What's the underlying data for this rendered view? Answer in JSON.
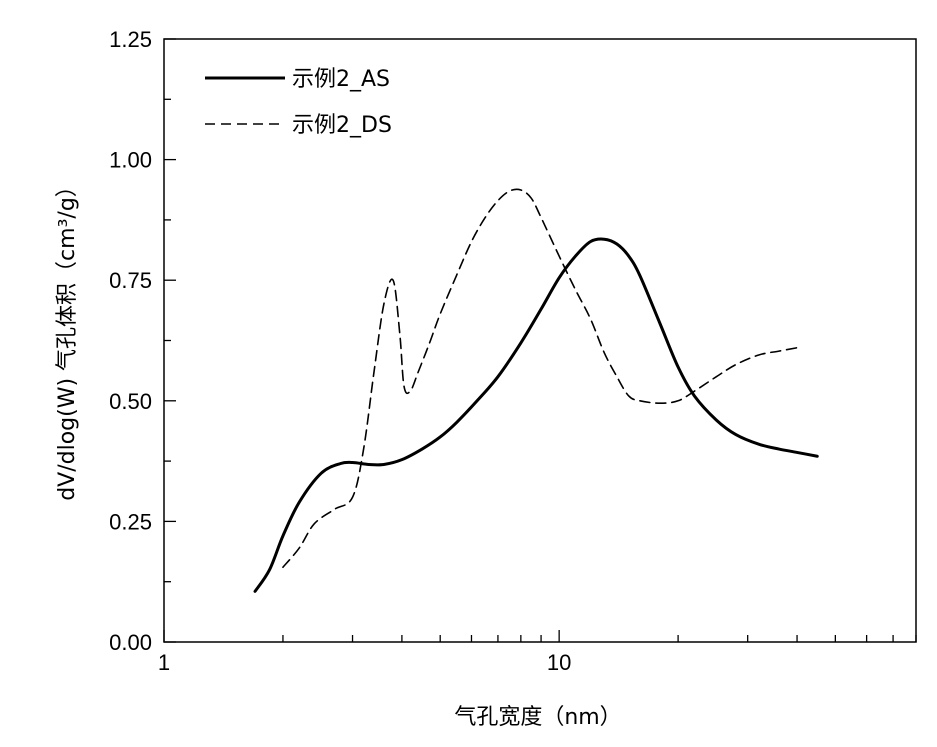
{
  "chart_data": {
    "type": "line",
    "title": "",
    "xlabel": "气孔宽度（nm）",
    "ylabel": "dV/dlog(W) 气孔体积（cm³/g）",
    "xscale": "log",
    "xlim": [
      1,
      80
    ],
    "ylim": [
      0,
      1.25
    ],
    "x_ticks": [
      1,
      10
    ],
    "x_tick_labels": [
      "1",
      "10"
    ],
    "y_ticks": [
      0,
      0.25,
      0.5,
      0.75,
      1.0,
      1.25
    ],
    "y_tick_labels": [
      "0.00",
      "0.25",
      "0.50",
      "0.75",
      "1.00",
      "1.25"
    ],
    "grid": false,
    "legend": "top-left",
    "series": [
      {
        "name": "示例2_AS",
        "style": "solid",
        "color": "#000000",
        "x": [
          1.7,
          1.85,
          2.0,
          2.2,
          2.5,
          2.8,
          3.0,
          3.3,
          3.6,
          4.0,
          4.5,
          5.0,
          5.5,
          6.2,
          7.0,
          8.0,
          9.0,
          10.0,
          11.0,
          12.0,
          13.0,
          14.0,
          15.0,
          16.0,
          18.0,
          20.0,
          22.0,
          25.0,
          28.0,
          32.0,
          36.0,
          40.0,
          45.0
        ],
        "y": [
          0.105,
          0.15,
          0.22,
          0.29,
          0.35,
          0.37,
          0.372,
          0.368,
          0.368,
          0.378,
          0.4,
          0.425,
          0.455,
          0.5,
          0.55,
          0.62,
          0.69,
          0.755,
          0.8,
          0.83,
          0.835,
          0.825,
          0.8,
          0.76,
          0.66,
          0.57,
          0.51,
          0.46,
          0.43,
          0.41,
          0.4,
          0.393,
          0.385
        ]
      },
      {
        "name": "示例2_DS",
        "style": "dashed",
        "color": "#000000",
        "x": [
          2.0,
          2.2,
          2.4,
          2.7,
          3.0,
          3.2,
          3.4,
          3.6,
          3.8,
          3.95,
          4.05,
          4.2,
          4.4,
          4.7,
          5.0,
          5.5,
          6.0,
          6.5,
          7.0,
          7.5,
          8.0,
          8.5,
          9.0,
          10.0,
          11.0,
          12.0,
          13.0,
          14.0,
          15.0,
          16.0,
          18.0,
          20.0,
          22.0,
          25.0,
          28.0,
          32.0,
          36.0,
          40.0
        ],
        "y": [
          0.155,
          0.195,
          0.245,
          0.275,
          0.3,
          0.4,
          0.56,
          0.7,
          0.75,
          0.64,
          0.53,
          0.52,
          0.56,
          0.62,
          0.68,
          0.76,
          0.83,
          0.88,
          0.915,
          0.935,
          0.937,
          0.92,
          0.88,
          0.8,
          0.73,
          0.67,
          0.6,
          0.55,
          0.51,
          0.5,
          0.495,
          0.5,
          0.52,
          0.55,
          0.575,
          0.595,
          0.603,
          0.61
        ]
      }
    ]
  }
}
